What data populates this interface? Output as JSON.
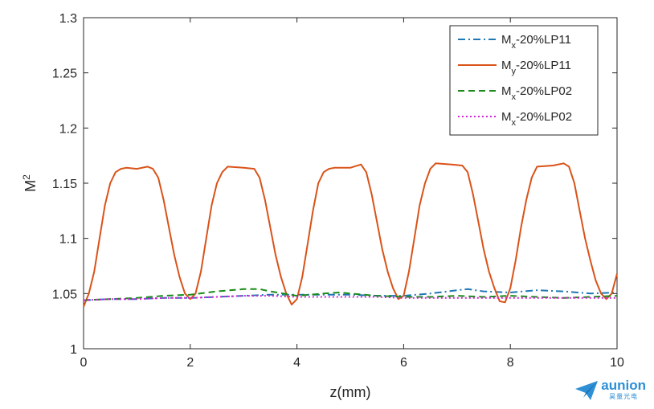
{
  "chart_data": {
    "type": "line",
    "xlabel": "z(mm)",
    "ylabel": "M",
    "ylabel_sup": "2",
    "xlim": [
      0,
      10
    ],
    "ylim": [
      1,
      1.3
    ],
    "xticks": [
      "0",
      "2",
      "4",
      "6",
      "8",
      "10"
    ],
    "yticks": [
      "1",
      "1.05",
      "1.1",
      "1.15",
      "1.2",
      "1.25",
      "1.3"
    ],
    "grid": false,
    "legend_position": "top-right",
    "series": [
      {
        "name_main": "M",
        "name_sub": "x",
        "name_rest": "-20%LP11",
        "color": "#1f77b4",
        "dash": "dashdot",
        "x": [
          0,
          0.5,
          1,
          1.5,
          2,
          2.5,
          3,
          3.5,
          4,
          4.5,
          5,
          5.5,
          6,
          6.5,
          7,
          7.2,
          7.5,
          8,
          8.5,
          9,
          9.5,
          10
        ],
        "y": [
          1.044,
          1.045,
          1.045,
          1.046,
          1.046,
          1.047,
          1.048,
          1.049,
          1.049,
          1.049,
          1.049,
          1.048,
          1.048,
          1.05,
          1.053,
          1.054,
          1.052,
          1.051,
          1.053,
          1.052,
          1.05,
          1.051
        ]
      },
      {
        "name_main": "M",
        "name_sub": "y",
        "name_rest": "-20%LP11",
        "color": "#d95319",
        "dash": "solid",
        "x": [
          0,
          0.1,
          0.2,
          0.3,
          0.4,
          0.5,
          0.6,
          0.7,
          0.8,
          1.0,
          1.2,
          1.3,
          1.4,
          1.5,
          1.6,
          1.7,
          1.8,
          1.9,
          2.0,
          2.1,
          2.2,
          2.3,
          2.4,
          2.5,
          2.6,
          2.7,
          3.0,
          3.2,
          3.3,
          3.4,
          3.5,
          3.6,
          3.7,
          3.8,
          3.9,
          4.0,
          4.1,
          4.2,
          4.3,
          4.4,
          4.5,
          4.6,
          4.7,
          5.0,
          5.2,
          5.3,
          5.4,
          5.5,
          5.6,
          5.7,
          5.8,
          5.9,
          6.0,
          6.1,
          6.2,
          6.3,
          6.4,
          6.5,
          6.6,
          6.9,
          7.1,
          7.2,
          7.3,
          7.4,
          7.5,
          7.6,
          7.7,
          7.8,
          7.9,
          8.0,
          8.1,
          8.2,
          8.3,
          8.4,
          8.5,
          8.8,
          9.0,
          9.1,
          9.2,
          9.3,
          9.4,
          9.5,
          9.6,
          9.7,
          9.8,
          9.9,
          10.0
        ],
        "y": [
          1.038,
          1.05,
          1.07,
          1.1,
          1.13,
          1.15,
          1.16,
          1.163,
          1.164,
          1.163,
          1.165,
          1.163,
          1.155,
          1.135,
          1.11,
          1.085,
          1.065,
          1.05,
          1.045,
          1.05,
          1.07,
          1.1,
          1.13,
          1.15,
          1.16,
          1.165,
          1.164,
          1.163,
          1.155,
          1.135,
          1.11,
          1.085,
          1.065,
          1.05,
          1.04,
          1.045,
          1.065,
          1.095,
          1.125,
          1.15,
          1.16,
          1.163,
          1.164,
          1.164,
          1.167,
          1.16,
          1.14,
          1.115,
          1.09,
          1.07,
          1.055,
          1.045,
          1.048,
          1.07,
          1.1,
          1.13,
          1.15,
          1.163,
          1.168,
          1.167,
          1.166,
          1.16,
          1.14,
          1.115,
          1.09,
          1.07,
          1.055,
          1.043,
          1.042,
          1.055,
          1.08,
          1.11,
          1.135,
          1.155,
          1.165,
          1.166,
          1.168,
          1.165,
          1.15,
          1.125,
          1.1,
          1.08,
          1.062,
          1.05,
          1.045,
          1.05,
          1.068
        ]
      },
      {
        "name_main": "M",
        "name_sub": "x",
        "name_rest": "-20%LP02",
        "color": "#1a8a1a",
        "dash": "dashed",
        "x": [
          0,
          0.5,
          1,
          1.5,
          2,
          2.5,
          3,
          3.3,
          3.5,
          4,
          4.5,
          4.8,
          5,
          5.5,
          6,
          6.5,
          7,
          7.5,
          8,
          8.5,
          9,
          9.5,
          10
        ],
        "y": [
          1.044,
          1.045,
          1.046,
          1.048,
          1.049,
          1.052,
          1.054,
          1.054,
          1.052,
          1.048,
          1.05,
          1.051,
          1.05,
          1.048,
          1.047,
          1.047,
          1.048,
          1.047,
          1.048,
          1.047,
          1.046,
          1.047,
          1.048
        ]
      },
      {
        "name_main": "M",
        "name_sub": "x",
        "name_rest": "-20%LP02",
        "color": "#d424d4",
        "dash": "dotted",
        "x": [
          0,
          0.5,
          1,
          1.5,
          2,
          2.5,
          3,
          3.5,
          4,
          4.5,
          5,
          5.5,
          6,
          6.5,
          7,
          7.5,
          8,
          8.5,
          9,
          9.5,
          10
        ],
        "y": [
          1.044,
          1.045,
          1.045,
          1.046,
          1.046,
          1.047,
          1.048,
          1.048,
          1.047,
          1.047,
          1.047,
          1.047,
          1.046,
          1.046,
          1.046,
          1.046,
          1.046,
          1.046,
          1.046,
          1.046,
          1.046
        ]
      }
    ]
  },
  "logo": {
    "word": "aunion",
    "sub": "昊量光电",
    "color": "#2d8fd5"
  }
}
